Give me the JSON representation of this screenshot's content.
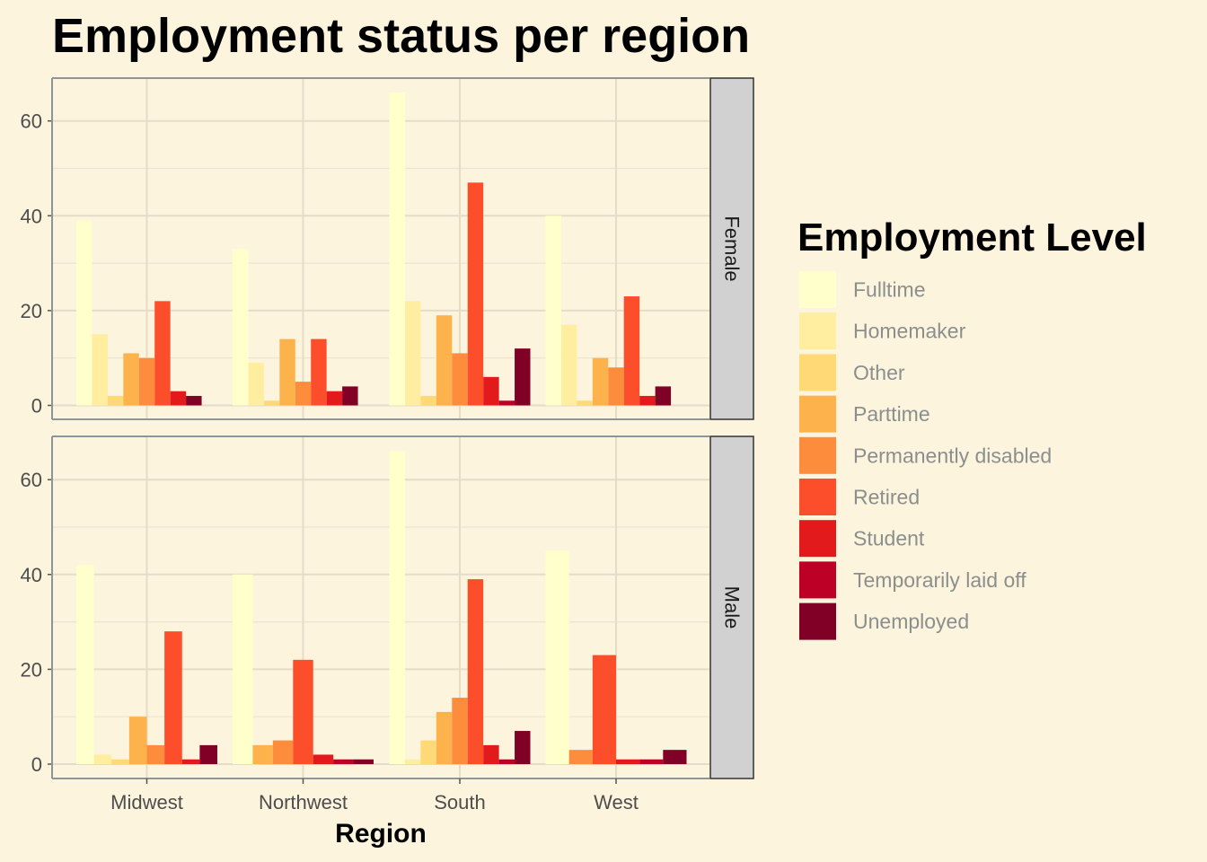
{
  "chart_data": {
    "type": "bar",
    "title": "Employment status per region",
    "xlabel": "Region",
    "ylabel": "",
    "ylim": [
      0,
      69
    ],
    "y_ticks": [
      0,
      20,
      40,
      60
    ],
    "grid": true,
    "legend_placement": "right",
    "legend_title": "Employment Level",
    "categories": [
      "Midwest",
      "Northwest",
      "South",
      "West"
    ],
    "series": [
      {
        "name": "Fulltime",
        "color": "#ffffcc"
      },
      {
        "name": "Homemaker",
        "color": "#ffeda0"
      },
      {
        "name": "Other",
        "color": "#fed976"
      },
      {
        "name": "Parttime",
        "color": "#feb24c"
      },
      {
        "name": "Permanently disabled",
        "color": "#fd8d3c"
      },
      {
        "name": "Retired",
        "color": "#fc4e2a"
      },
      {
        "name": "Student",
        "color": "#e31a1c"
      },
      {
        "name": "Temporarily laid off",
        "color": "#bd0026"
      },
      {
        "name": "Unemployed",
        "color": "#800026"
      }
    ],
    "facets": [
      {
        "label": "Female",
        "values": [
          [
            39,
            15,
            2,
            11,
            10,
            22,
            3,
            2,
            0
          ],
          [
            33,
            9,
            1,
            14,
            5,
            14,
            3,
            4,
            0
          ],
          [
            66,
            22,
            2,
            19,
            11,
            47,
            6,
            1,
            12
          ],
          [
            40,
            17,
            1,
            10,
            8,
            23,
            2,
            4,
            0
          ]
        ],
        "labels": [
          [
            "Fulltime",
            "Homemaker",
            "Other",
            "Parttime",
            "Permanently disabled",
            "Retired",
            "Student",
            "Unemployed",
            null
          ],
          [
            "Fulltime",
            "Homemaker",
            "Other",
            "Parttime",
            "Permanently disabled",
            "Retired",
            "Student",
            "Unemployed",
            null
          ],
          [
            "Fulltime",
            "Homemaker",
            "Other",
            "Parttime",
            "Permanently disabled",
            "Retired",
            "Student",
            "Temporarily laid off",
            "Unemployed"
          ],
          [
            "Fulltime",
            "Homemaker",
            "Other",
            "Parttime",
            "Permanently disabled",
            "Retired",
            "Student",
            "Unemployed",
            null
          ]
        ]
      },
      {
        "label": "Male",
        "values": [
          [
            42,
            2,
            1,
            10,
            4,
            28,
            1,
            4
          ],
          [
            40,
            4,
            5,
            22,
            2,
            1,
            1
          ],
          [
            66,
            1,
            5,
            11,
            14,
            39,
            4,
            1,
            7
          ],
          [
            45,
            3,
            23,
            1,
            1,
            3
          ]
        ],
        "labels": [
          [
            "Fulltime",
            "Homemaker",
            "Other",
            "Parttime",
            "Permanently disabled",
            "Retired",
            "Student",
            "Unemployed"
          ],
          [
            "Fulltime",
            "Parttime",
            "Permanently disabled",
            "Retired",
            "Student",
            "Temporarily laid off",
            "Unemployed"
          ],
          [
            "Fulltime",
            "Homemaker",
            "Other",
            "Parttime",
            "Permanently disabled",
            "Retired",
            "Student",
            "Temporarily laid off",
            "Unemployed"
          ],
          [
            "Fulltime",
            "Permanently disabled",
            "Retired",
            "Student",
            "Temporarily laid off",
            "Unemployed"
          ]
        ]
      }
    ]
  }
}
